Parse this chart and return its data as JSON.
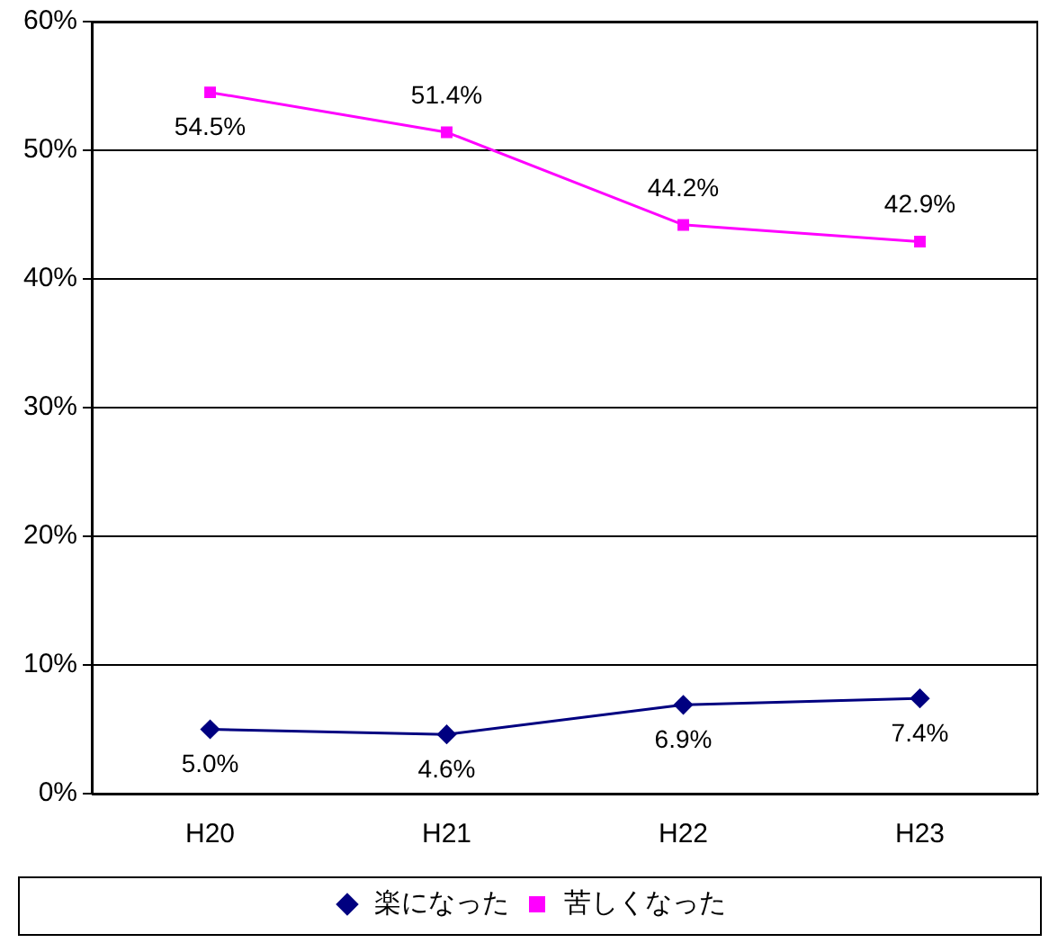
{
  "chart_data": {
    "type": "line",
    "categories": [
      "H20",
      "H21",
      "H22",
      "H23"
    ],
    "series": [
      {
        "name": "楽になった",
        "color": "#000080",
        "marker": "diamond",
        "values": [
          5.0,
          4.6,
          6.9,
          7.4
        ],
        "value_labels": [
          "5.0%",
          "4.6%",
          "6.9%",
          "7.4%"
        ]
      },
      {
        "name": "苦しくなった",
        "color": "#ff00ff",
        "marker": "square",
        "values": [
          54.5,
          51.4,
          44.2,
          42.9
        ],
        "value_labels": [
          "54.5%",
          "51.4%",
          "44.2%",
          "42.9%"
        ]
      }
    ],
    "ylim": [
      0,
      60
    ],
    "yticks": [
      {
        "value": 0,
        "label": "0%"
      },
      {
        "value": 10,
        "label": "10%"
      },
      {
        "value": 20,
        "label": "20%"
      },
      {
        "value": 30,
        "label": "30%"
      },
      {
        "value": 40,
        "label": "40%"
      },
      {
        "value": 50,
        "label": "50%"
      },
      {
        "value": 60,
        "label": "60%"
      }
    ],
    "grid": "y",
    "legend": "bottom",
    "line_style": "solid"
  }
}
